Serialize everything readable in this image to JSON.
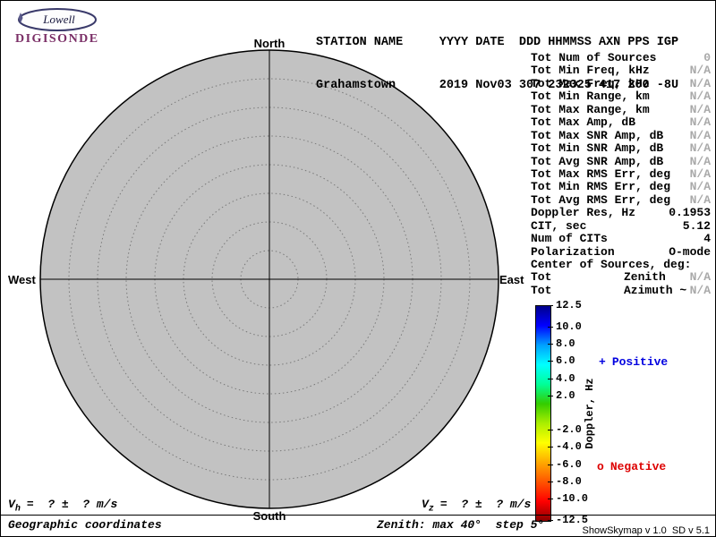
{
  "logo": {
    "brand": "Lowell",
    "product": "DIGISONDE",
    "product_color": "#7a2e66"
  },
  "header": {
    "line1": "STATION NAME     YYYY DATE  DDD HHMMSS AXN PPS IGP",
    "line2": "Grahamstown      2019 Nov03 307 232325 417 200 -8U"
  },
  "compass": {
    "north": "North",
    "south": "South",
    "west": "West",
    "east": "East"
  },
  "plot": {
    "disk_color": "#c2c2c2",
    "max_zenith_deg": 40,
    "step_deg": 5
  },
  "stats": {
    "rows": [
      {
        "label": "Tot Num of Sources",
        "mid": "",
        "value": "0",
        "muted": true
      },
      {
        "label": "Tot Min Freq, kHz",
        "mid": "",
        "value": "N/A",
        "muted": true
      },
      {
        "label": "Tot Max Freq, kHz",
        "mid": "",
        "value": "N/A",
        "muted": true
      },
      {
        "label": "Tot Min Range, km",
        "mid": "",
        "value": "N/A",
        "muted": true
      },
      {
        "label": "Tot Max Range, km",
        "mid": "",
        "value": "N/A",
        "muted": true
      },
      {
        "label": "Tot Max Amp, dB",
        "mid": "",
        "value": "N/A",
        "muted": true
      },
      {
        "label": "Tot Max SNR Amp, dB",
        "mid": "",
        "value": "N/A",
        "muted": true
      },
      {
        "label": "Tot Min SNR Amp, dB",
        "mid": "",
        "value": "N/A",
        "muted": true
      },
      {
        "label": "Tot Avg SNR Amp, dB",
        "mid": "",
        "value": "N/A",
        "muted": true
      },
      {
        "label": "Tot Max RMS Err, deg",
        "mid": "",
        "value": "N/A",
        "muted": true
      },
      {
        "label": "Tot Min RMS Err, deg",
        "mid": "",
        "value": "N/A",
        "muted": true
      },
      {
        "label": "Tot Avg RMS Err, deg",
        "mid": "",
        "value": "N/A",
        "muted": true
      },
      {
        "label": "Doppler Res, Hz",
        "mid": "",
        "value": "0.1953",
        "muted": false
      },
      {
        "label": "CIT, sec",
        "mid": "",
        "value": "5.12",
        "muted": false
      },
      {
        "label": "Num of CITs",
        "mid": "",
        "value": "4",
        "muted": false
      },
      {
        "label": "Polarization",
        "mid": "",
        "value": "O-mode",
        "muted": false
      },
      {
        "label": "Center of Sources, deg:",
        "mid": "",
        "value": "",
        "muted": false
      },
      {
        "label": "Tot",
        "mid": "Zenith",
        "value": "N/A",
        "muted": true
      },
      {
        "label": "Tot",
        "mid": "Azimuth ~",
        "value": "N/A",
        "muted": true
      }
    ]
  },
  "colorbar": {
    "axis_label": "Doppler, Hz",
    "max": 12.5,
    "min": -12.5,
    "tick_labels": [
      "12.5",
      "10.0",
      "8.0",
      "6.0",
      "4.0",
      "2.0",
      "-2.0",
      "-4.0",
      "-6.0",
      "-8.0",
      "-10.0",
      "-12.5"
    ],
    "gradient": [
      "#00008b",
      "#0000ff",
      "#00a0ff",
      "#00ffff",
      "#00ff99",
      "#33cc00",
      "#aaee00",
      "#ffff00",
      "#ffaa00",
      "#ff5500",
      "#ff0000",
      "#8b0000"
    ],
    "positive": {
      "marker": "+",
      "label": "Positive",
      "color": "#0000e0"
    },
    "negative": {
      "marker": "o",
      "label": "Negative",
      "color": "#dd0000"
    }
  },
  "footer": {
    "vh": {
      "symbol": "V",
      "sub": "h",
      "rest": "=  ? ±  ? m/s"
    },
    "vz": {
      "symbol": "V",
      "sub": "z",
      "rest": "=  ? ±  ? m/s"
    },
    "coordinates_note": "Geographic coordinates",
    "zenith_note": "Zenith: max 40°  step 5°",
    "version": "ShowSkymap v 1.0  SD v 5.1"
  }
}
